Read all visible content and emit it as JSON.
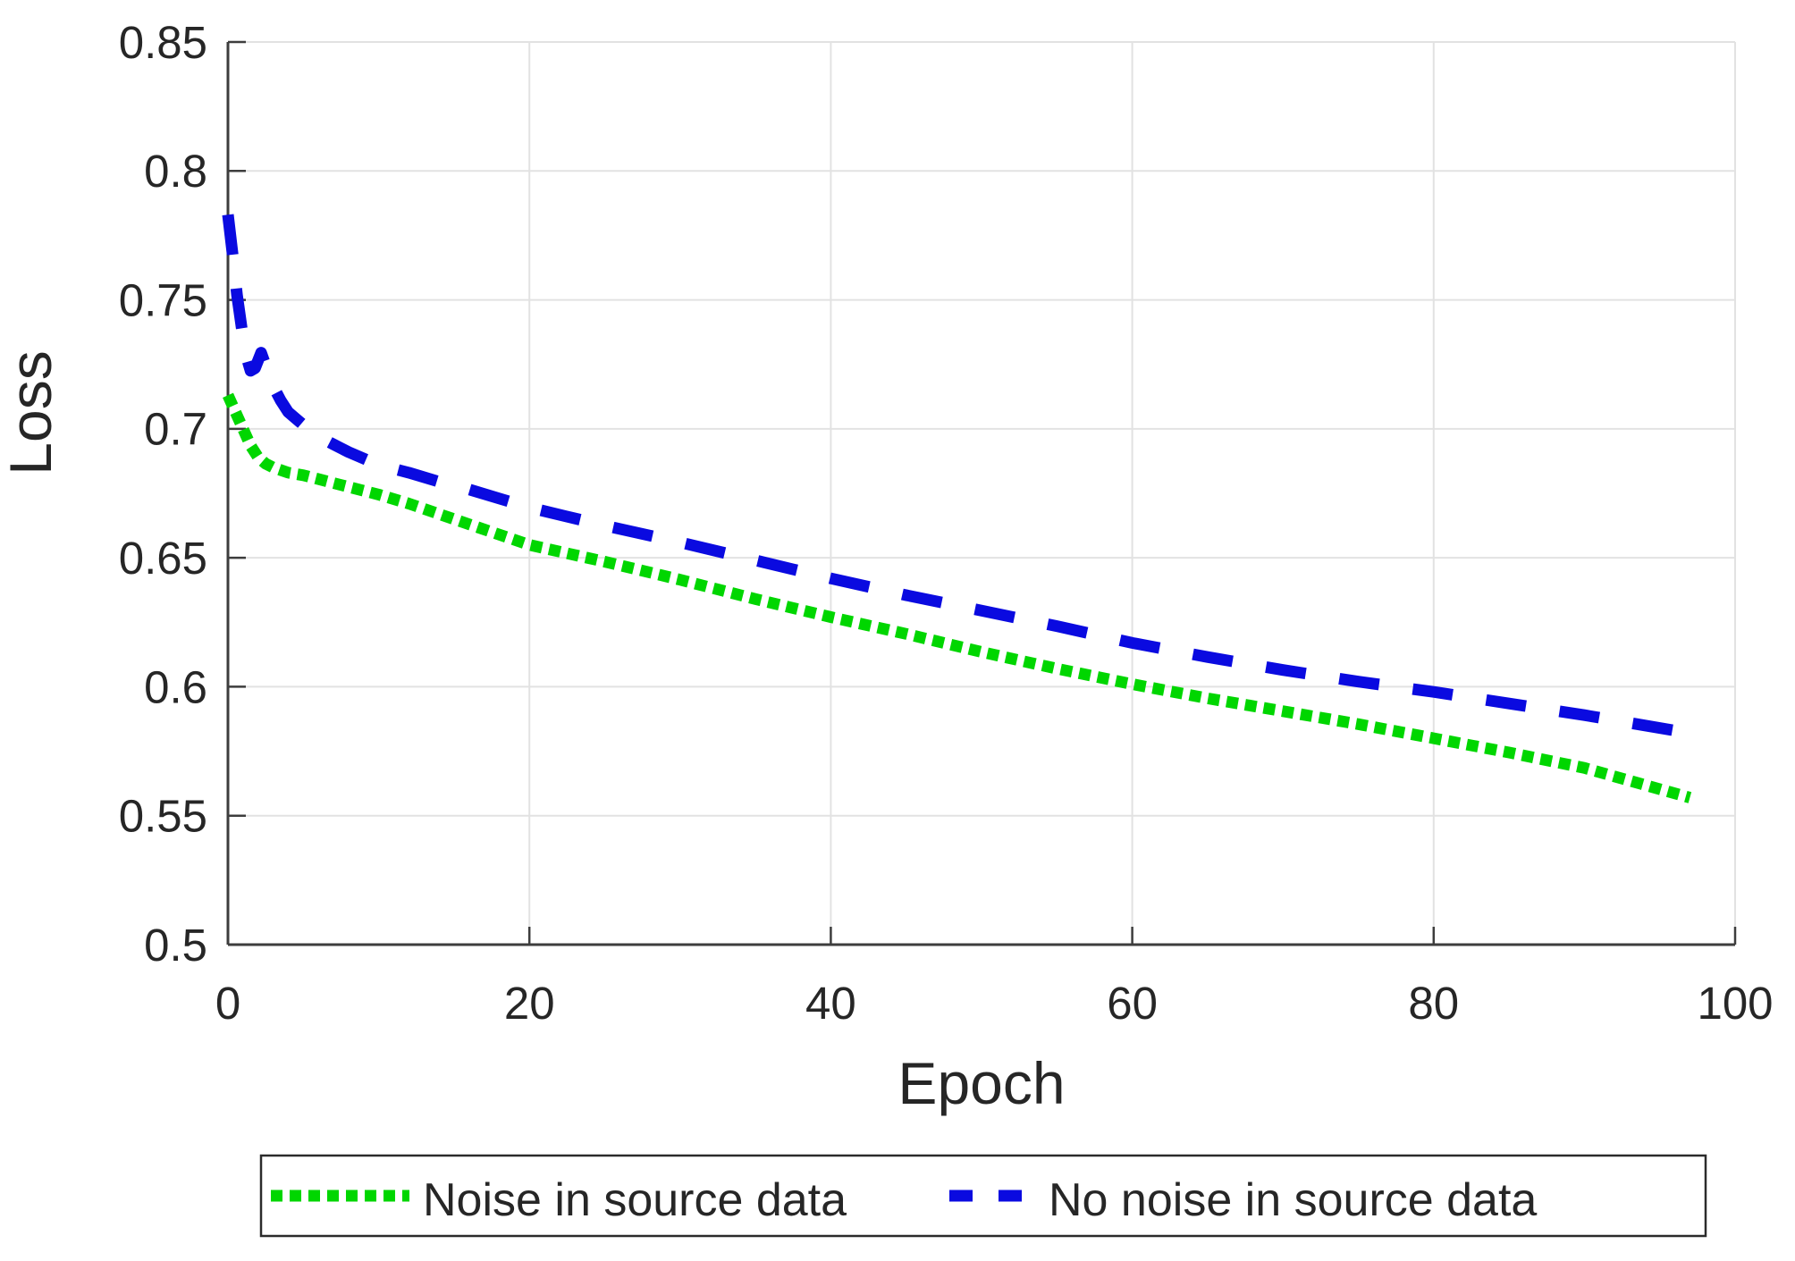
{
  "chart_data": {
    "type": "line",
    "title": "",
    "xlabel": "Epoch",
    "ylabel": "Loss",
    "xlim": [
      0,
      100
    ],
    "ylim": [
      0.5,
      0.85
    ],
    "x_ticks": [
      0,
      20,
      40,
      60,
      80,
      100
    ],
    "x_tick_labels": [
      "0",
      "20",
      "40",
      "60",
      "80",
      "100"
    ],
    "y_ticks": [
      0.5,
      0.55,
      0.6,
      0.65,
      0.7,
      0.75,
      0.8,
      0.85
    ],
    "y_tick_labels": [
      "0.5",
      "0.55",
      "0.6",
      "0.65",
      "0.7",
      "0.75",
      "0.8",
      "0.85"
    ],
    "grid": true,
    "legend_position": "below",
    "series": [
      {
        "name": "Noise in source data",
        "color": "#00d600",
        "style": "dotted",
        "points": [
          [
            0,
            0.713
          ],
          [
            0.5,
            0.7065
          ],
          [
            1,
            0.7
          ],
          [
            1.5,
            0.6935
          ],
          [
            2,
            0.689
          ],
          [
            2.5,
            0.6865
          ],
          [
            3,
            0.685
          ],
          [
            4,
            0.683
          ],
          [
            5,
            0.682
          ],
          [
            6,
            0.6805
          ],
          [
            7,
            0.679
          ],
          [
            8,
            0.6775
          ],
          [
            9,
            0.676
          ],
          [
            10,
            0.6745
          ],
          [
            12,
            0.671
          ],
          [
            15,
            0.665
          ],
          [
            20,
            0.655
          ],
          [
            25,
            0.6485
          ],
          [
            30,
            0.6415
          ],
          [
            35,
            0.634
          ],
          [
            40,
            0.627
          ],
          [
            45,
            0.6205
          ],
          [
            50,
            0.6135
          ],
          [
            55,
            0.607
          ],
          [
            60,
            0.601
          ],
          [
            65,
            0.5955
          ],
          [
            70,
            0.5905
          ],
          [
            75,
            0.5855
          ],
          [
            80,
            0.58
          ],
          [
            85,
            0.5745
          ],
          [
            90,
            0.5685
          ],
          [
            97,
            0.557
          ]
        ]
      },
      {
        "name": "No noise in source data",
        "color": "#0a0ae0",
        "style": "dashed",
        "points": [
          [
            0,
            0.783
          ],
          [
            0.3,
            0.768
          ],
          [
            0.6,
            0.752
          ],
          [
            0.9,
            0.7395
          ],
          [
            1.2,
            0.7285
          ],
          [
            1.5,
            0.7225
          ],
          [
            1.8,
            0.7235
          ],
          [
            2.2,
            0.7295
          ],
          [
            2.6,
            0.723
          ],
          [
            3,
            0.7165
          ],
          [
            3.5,
            0.711
          ],
          [
            4,
            0.7065
          ],
          [
            4.6,
            0.7035
          ],
          [
            5.2,
            0.7005
          ],
          [
            6,
            0.697
          ],
          [
            7,
            0.694
          ],
          [
            8,
            0.691
          ],
          [
            10,
            0.686
          ],
          [
            12,
            0.683
          ],
          [
            14,
            0.6795
          ],
          [
            16,
            0.6765
          ],
          [
            18,
            0.673
          ],
          [
            20,
            0.6695
          ],
          [
            25,
            0.6625
          ],
          [
            30,
            0.656
          ],
          [
            35,
            0.649
          ],
          [
            40,
            0.642
          ],
          [
            45,
            0.6355
          ],
          [
            50,
            0.6295
          ],
          [
            55,
            0.6235
          ],
          [
            60,
            0.617
          ],
          [
            65,
            0.6115
          ],
          [
            70,
            0.6065
          ],
          [
            75,
            0.602
          ],
          [
            80,
            0.598
          ],
          [
            85,
            0.5935
          ],
          [
            90,
            0.589
          ],
          [
            96,
            0.583
          ]
        ]
      }
    ],
    "style_colors": {
      "grid": "#e2e2e2",
      "axis": "#3d3d3d",
      "tick_text": "#262626",
      "legend_border": "#2b2b2b",
      "background": "#ffffff"
    }
  }
}
